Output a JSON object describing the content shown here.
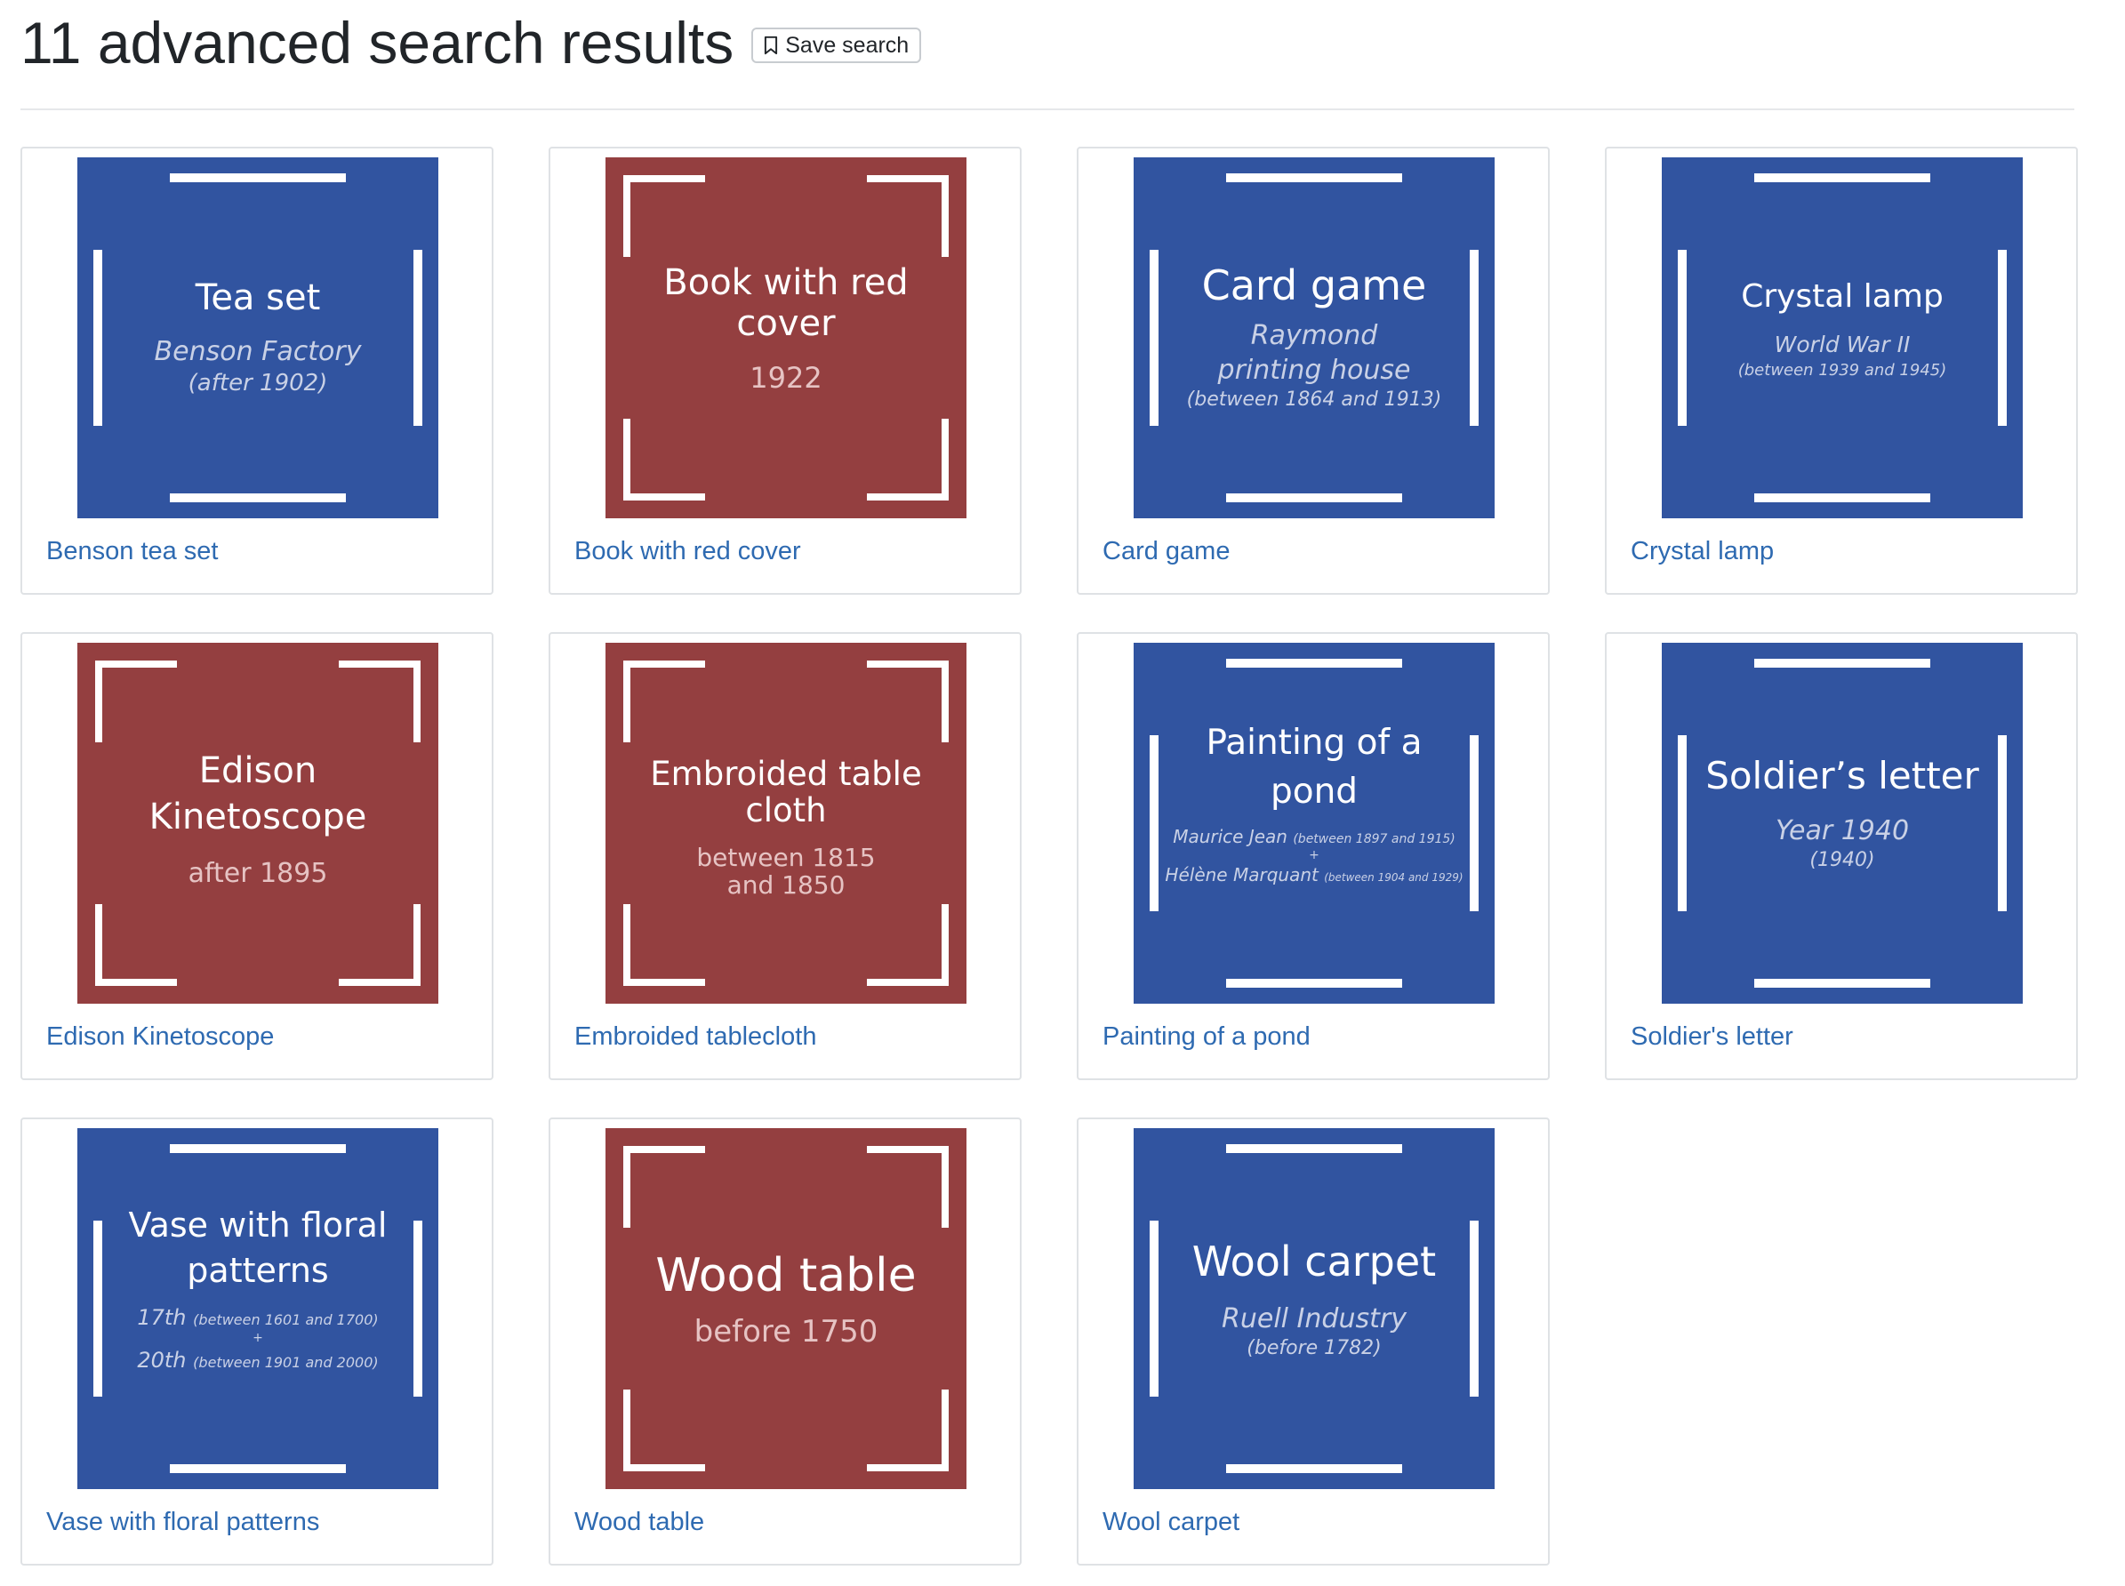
{
  "header": {
    "title": "11 advanced search results",
    "save_label": "Save search"
  },
  "colors": {
    "blue": "#3154a0",
    "red": "#943f40",
    "link": "#2e6ab1"
  },
  "results": [
    {
      "title": "Benson tea set",
      "thumb": {
        "main": "Tea set",
        "sub": "Benson Factory",
        "date": "(after 1902)"
      }
    },
    {
      "title": "Book with red cover",
      "thumb": {
        "main": "Book with red cover",
        "date": "1922"
      }
    },
    {
      "title": "Card game",
      "thumb": {
        "main": "Card game",
        "sub": "Raymond printing house",
        "date": "(between 1864 and 1913)"
      }
    },
    {
      "title": "Crystal lamp",
      "thumb": {
        "main": "Crystal lamp",
        "sub": "World War II",
        "date": "(between 1939 and 1945)"
      }
    },
    {
      "title": "Edison Kinetoscope",
      "thumb": {
        "main": "Edison Kinetoscope",
        "date": "after 1895"
      }
    },
    {
      "title": "Embroided tablecloth",
      "thumb": {
        "main": "Embroided table cloth",
        "date": "between 1815 and 1850"
      }
    },
    {
      "title": "Painting of a pond",
      "thumb": {
        "main": "Painting of a pond",
        "line1": "Maurice Jean",
        "line1_date": "(between 1897 and 1915)",
        "plus": "+",
        "line2": "Hélène Marquant",
        "line2_date": "(between 1904 and 1929)"
      }
    },
    {
      "title": "Soldier's letter",
      "thumb": {
        "main": "Soldier’s letter",
        "sub": "Year 1940",
        "date": "(1940)"
      }
    },
    {
      "title": "Vase with floral patterns",
      "thumb": {
        "main": "Vase with floral patterns",
        "line1": "17th",
        "line1_date": "(between 1601 and 1700)",
        "plus": "+",
        "line2": "20th",
        "line2_date": "(between 1901 and 2000)"
      }
    },
    {
      "title": "Wood table",
      "thumb": {
        "main": "Wood table",
        "date": "before 1750"
      }
    },
    {
      "title": "Wool carpet",
      "thumb": {
        "main": "Wool carpet",
        "sub": "Ruell Industry",
        "date": "(before 1782)"
      }
    }
  ]
}
